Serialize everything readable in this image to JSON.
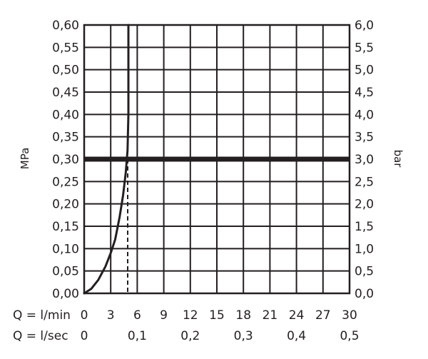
{
  "chart_data": {
    "type": "line",
    "left_axis": {
      "unit": "MPa",
      "range": [
        0,
        0.6
      ],
      "ticks": [
        "0,00",
        "0,05",
        "0,10",
        "0,15",
        "0,20",
        "0,25",
        "0,30",
        "0,35",
        "0,40",
        "0,45",
        "0,50",
        "0,55",
        "0,60"
      ]
    },
    "right_axis": {
      "unit": "bar",
      "range": [
        0,
        6
      ],
      "ticks": [
        "0,0",
        "0,5",
        "1,0",
        "1,5",
        "2,0",
        "2,5",
        "3,0",
        "3,5",
        "4,0",
        "4,5",
        "5,0",
        "5,5",
        "6,0"
      ]
    },
    "x_axis_lmin": {
      "label": "Q = l/min",
      "range": [
        0,
        30
      ],
      "ticks": [
        "0",
        "3",
        "6",
        "9",
        "12",
        "15",
        "18",
        "21",
        "24",
        "27",
        "30"
      ]
    },
    "x_axis_lsec": {
      "label": "Q = l/sec",
      "range": [
        0,
        0.5
      ],
      "ticks": [
        {
          "value": 0,
          "text": "0"
        },
        {
          "value": 0.1,
          "text": "0,1"
        },
        {
          "value": 0.2,
          "text": "0,2"
        },
        {
          "value": 0.3,
          "text": "0,3"
        },
        {
          "value": 0.4,
          "text": "0,4"
        },
        {
          "value": 0.5,
          "text": "0,5"
        }
      ]
    },
    "grid": true,
    "curve": {
      "x_unit": "l/min",
      "points": [
        {
          "x": 0,
          "y": 0
        },
        {
          "x": 0.8,
          "y": 0.01
        },
        {
          "x": 1.6,
          "y": 0.03
        },
        {
          "x": 2.4,
          "y": 0.06
        },
        {
          "x": 3.0,
          "y": 0.09
        },
        {
          "x": 3.5,
          "y": 0.12
        },
        {
          "x": 4.0,
          "y": 0.17
        },
        {
          "x": 4.4,
          "y": 0.22
        },
        {
          "x": 4.7,
          "y": 0.27
        },
        {
          "x": 4.9,
          "y": 0.32
        },
        {
          "x": 5.0,
          "y": 0.4
        },
        {
          "x": 5.0,
          "y": 0.5
        },
        {
          "x": 5.0,
          "y": 0.6
        }
      ]
    },
    "reference_line_mpa": 0.3,
    "reference_flow_lmin": 5.0,
    "colors": {
      "line": "#231f20",
      "grid": "#231f20",
      "background": "#ffffff"
    }
  }
}
